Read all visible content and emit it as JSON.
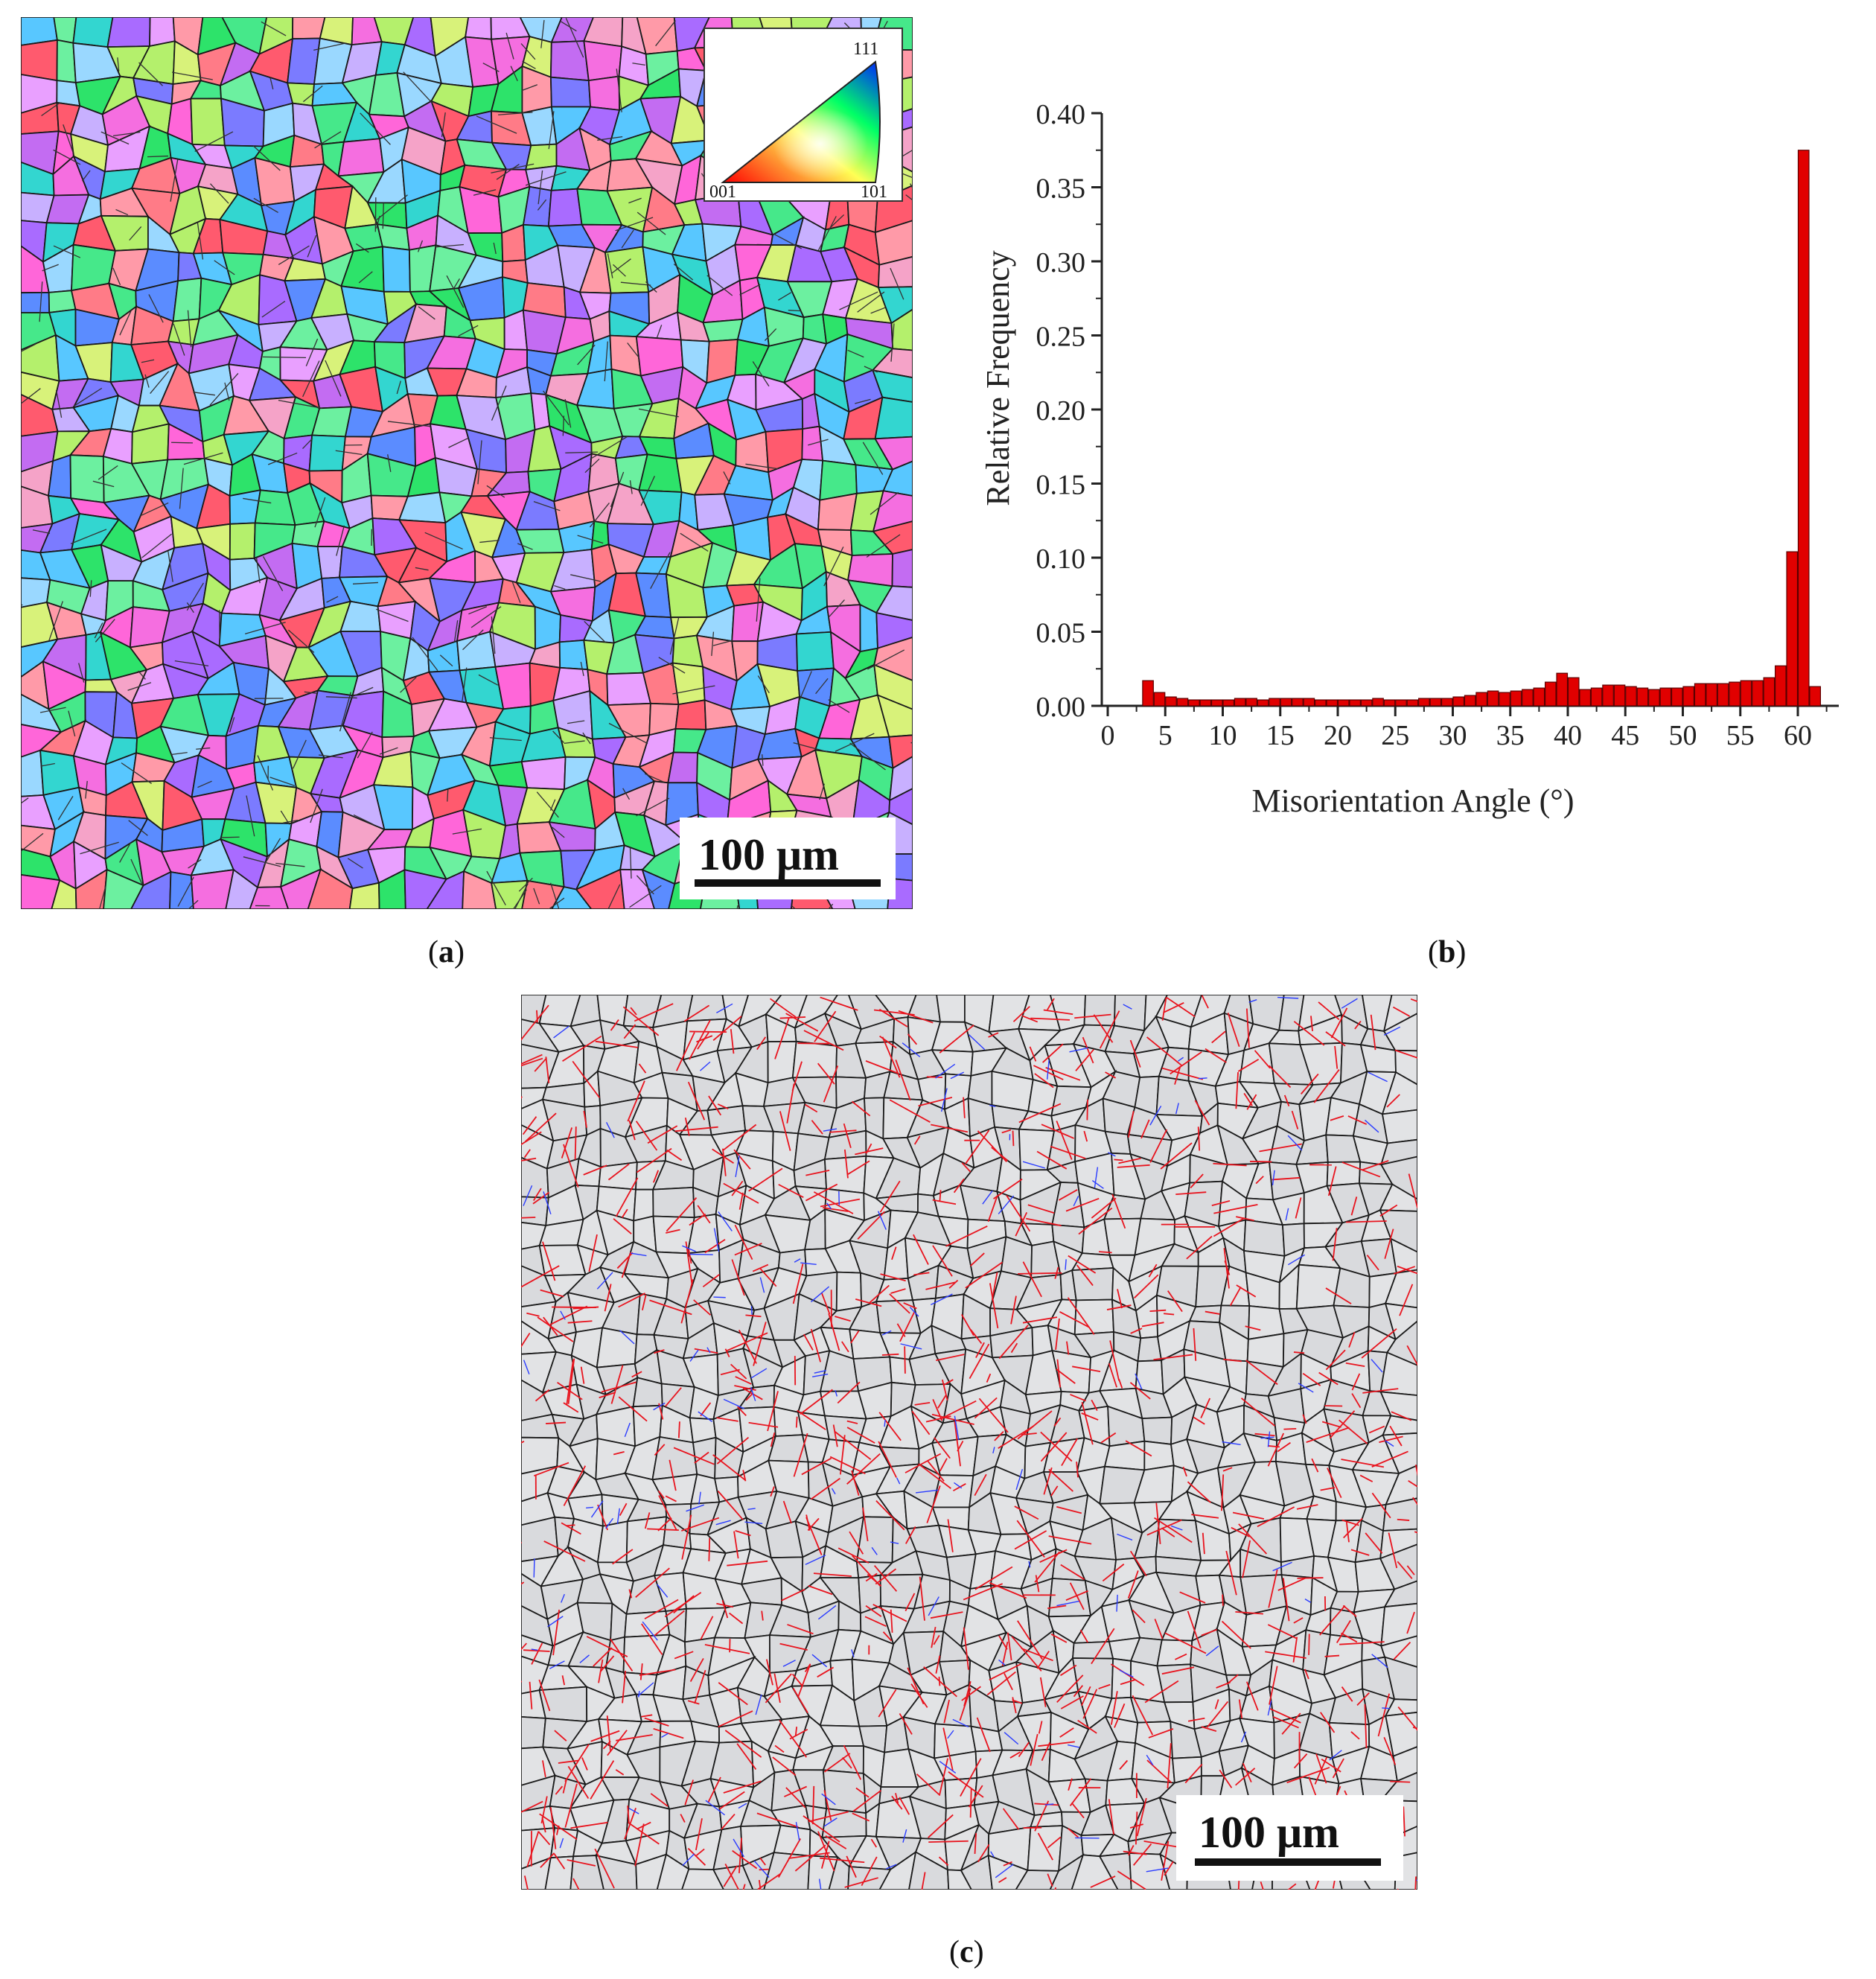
{
  "figure": {
    "labels": {
      "a": "a",
      "b": "b",
      "c": "c"
    }
  },
  "panel_a": {
    "scale_bar": "100 μm",
    "ipf_legend": {
      "top": "111",
      "left": "001",
      "right": "101"
    }
  },
  "panel_c": {
    "scale_bar": "100 μm"
  },
  "chart_data": {
    "type": "bar",
    "xlabel": "Misorientation Angle (°)",
    "ylabel": "Relative Frequency",
    "xlim": [
      0,
      64
    ],
    "ylim": [
      0,
      0.4
    ],
    "x_ticks": [
      0,
      5,
      10,
      15,
      20,
      25,
      30,
      35,
      40,
      45,
      50,
      55,
      60
    ],
    "y_ticks": [
      "0.00",
      "0.05",
      "0.10",
      "0.15",
      "0.20",
      "0.25",
      "0.30",
      "0.35",
      "0.40"
    ],
    "bar_color": "#e10000",
    "bin_width": 1,
    "x": [
      3.5,
      4.5,
      5.5,
      6.5,
      7.5,
      8.5,
      9.5,
      10.5,
      11.5,
      12.5,
      13.5,
      14.5,
      15.5,
      16.5,
      17.5,
      18.5,
      19.5,
      20.5,
      21.5,
      22.5,
      23.5,
      24.5,
      25.5,
      26.5,
      27.5,
      28.5,
      29.5,
      30.5,
      31.5,
      32.5,
      33.5,
      34.5,
      35.5,
      36.5,
      37.5,
      38.5,
      39.5,
      40.5,
      41.5,
      42.5,
      43.5,
      44.5,
      45.5,
      46.5,
      47.5,
      48.5,
      49.5,
      50.5,
      51.5,
      52.5,
      53.5,
      54.5,
      55.5,
      56.5,
      57.5,
      58.5,
      59.5,
      60.5,
      61.5
    ],
    "values": [
      0.017,
      0.009,
      0.006,
      0.005,
      0.004,
      0.004,
      0.004,
      0.004,
      0.005,
      0.005,
      0.004,
      0.005,
      0.005,
      0.005,
      0.005,
      0.004,
      0.004,
      0.004,
      0.004,
      0.004,
      0.005,
      0.004,
      0.004,
      0.004,
      0.005,
      0.005,
      0.005,
      0.006,
      0.007,
      0.009,
      0.01,
      0.009,
      0.01,
      0.011,
      0.012,
      0.016,
      0.022,
      0.019,
      0.011,
      0.012,
      0.014,
      0.014,
      0.013,
      0.012,
      0.011,
      0.012,
      0.012,
      0.013,
      0.015,
      0.015,
      0.015,
      0.016,
      0.017,
      0.017,
      0.019,
      0.027,
      0.104,
      0.375,
      0.013
    ]
  }
}
